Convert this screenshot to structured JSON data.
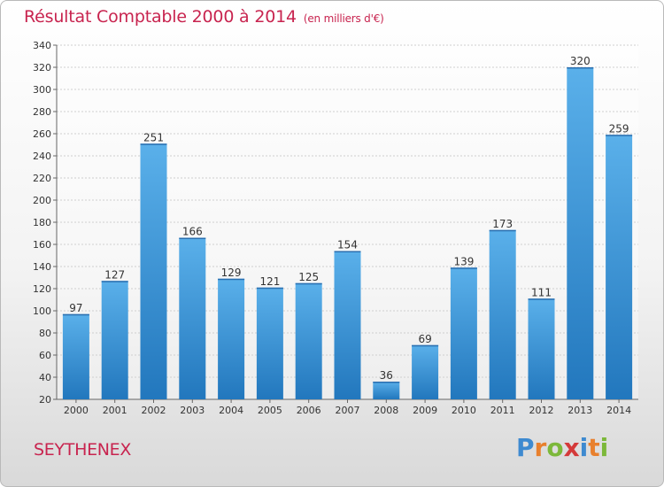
{
  "header": {
    "title": "Résultat Comptable 2000 à 2014",
    "subtitle": "(en milliers d'€)"
  },
  "footer": {
    "commune": "SEYTHENEX",
    "logo_letters": [
      "P",
      "r",
      "o",
      "x",
      "i",
      "t",
      "i"
    ],
    "logo_colors": [
      "#3e8ad0",
      "#e8802d",
      "#7cb83a",
      "#d43a3a",
      "#3e8ad0",
      "#e8802d",
      "#7cb83a"
    ]
  },
  "chart_data": {
    "type": "bar",
    "title": "Résultat Comptable 2000 à 2014",
    "subtitle": "(en milliers d'€)",
    "categories": [
      "2000",
      "2001",
      "2002",
      "2003",
      "2004",
      "2005",
      "2006",
      "2007",
      "2008",
      "2009",
      "2010",
      "2011",
      "2012",
      "2013",
      "2014"
    ],
    "values": [
      97,
      127,
      251,
      166,
      129,
      121,
      125,
      154,
      36,
      69,
      139,
      173,
      111,
      320,
      259
    ],
    "ylim": [
      20,
      340
    ],
    "yticks": [
      20,
      40,
      60,
      80,
      100,
      120,
      140,
      160,
      180,
      200,
      220,
      240,
      260,
      280,
      300,
      320,
      340
    ],
    "grid": true,
    "bar_color": "#3a8fd6"
  }
}
